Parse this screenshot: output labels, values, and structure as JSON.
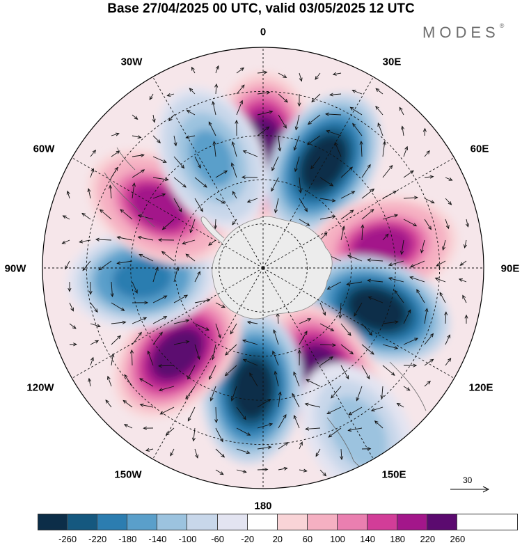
{
  "header": {
    "title": "Base 27/04/2025 00 UTC, valid 03/05/2025 12 UTC",
    "brand": "MODES",
    "brand_mark": "®"
  },
  "map": {
    "projection": "south-polar-stereographic",
    "longitude_labels": {
      "lon_0": "0",
      "lon_30e": "30E",
      "lon_60e": "60E",
      "lon_90e": "90E",
      "lon_120e": "120E",
      "lon_150e": "150E",
      "lon_180": "180",
      "lon_150w": "150W",
      "lon_120w": "120W",
      "lon_90w": "90W",
      "lon_60w": "60W",
      "lon_30w": "30W"
    },
    "anomaly_centers": [
      {
        "lon": 0,
        "sign": "positive",
        "peak": 240
      },
      {
        "lon": 30,
        "sign": "negative",
        "peak": -260
      },
      {
        "lon": 80,
        "sign": "positive",
        "peak": 180
      },
      {
        "lon": 110,
        "sign": "negative",
        "peak": -260
      },
      {
        "lon": 150,
        "sign": "positive",
        "peak": 260
      },
      {
        "lon": 185,
        "sign": "negative",
        "peak": -260
      },
      {
        "lon": 225,
        "sign": "positive",
        "peak": 220
      },
      {
        "lon": 265,
        "sign": "negative",
        "peak": -180
      },
      {
        "lon": 300,
        "sign": "positive",
        "peak": 180
      },
      {
        "lon": 335,
        "sign": "negative",
        "peak": -140
      },
      {
        "lon": 150,
        "sign": "negative",
        "peak": -100
      }
    ],
    "land": "Antarctica (grey)",
    "colors": {
      "antarctica": "#eeeeee",
      "coast": "#555555",
      "arrows": "#000000",
      "grid": "#000000"
    }
  },
  "reference_vector": {
    "label": "30"
  },
  "colorbar": {
    "colors": [
      "#0c2d48",
      "#15587f",
      "#2c7db0",
      "#5a9fca",
      "#9cc3df",
      "#c8d7ea",
      "#e3e4f1",
      "#ffffff",
      "#f9d4d7",
      "#f5b0c2",
      "#ea7fb0",
      "#d23d98",
      "#a3168a",
      "#5b0a6f"
    ],
    "tick_labels": [
      "-260",
      "-220",
      "-180",
      "-140",
      "-100",
      "-60",
      "-20",
      "20",
      "60",
      "100",
      "140",
      "180",
      "220",
      "260"
    ]
  }
}
